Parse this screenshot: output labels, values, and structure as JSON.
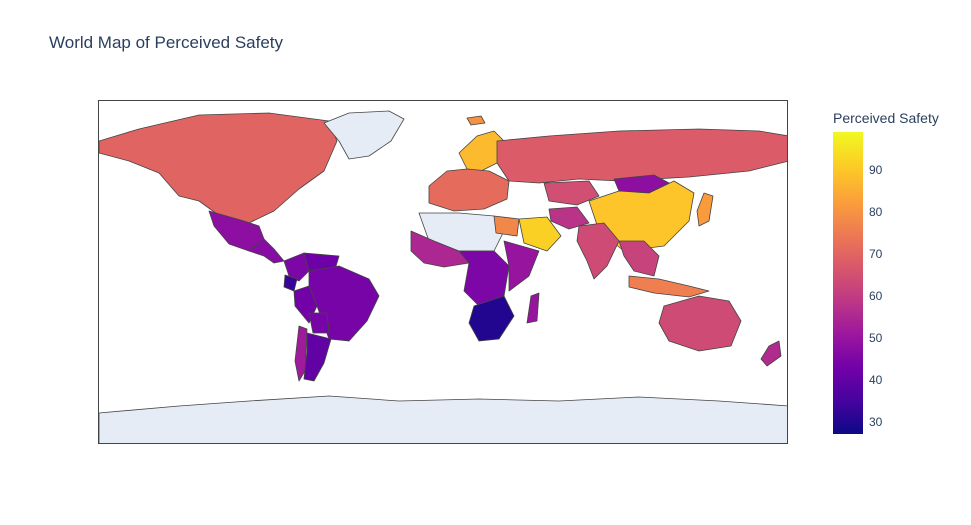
{
  "title": "World Map of Perceived Safety",
  "colorbar": {
    "title": "Perceived Safety",
    "ticks": [
      "90",
      "80",
      "70",
      "60",
      "50",
      "40",
      "30"
    ],
    "range": [
      27,
      99
    ]
  },
  "colors": {
    "no_data": "#e5ecf6",
    "border": "#444444",
    "scale": [
      "#0d0887",
      "#46039f",
      "#7201a8",
      "#9c179e",
      "#bd3786",
      "#d8576b",
      "#ed7953",
      "#fb9f3a",
      "#fdca26",
      "#f0f921"
    ]
  },
  "regions": [
    {
      "name": "North America",
      "value": 70
    },
    {
      "name": "Greenland",
      "value": null
    },
    {
      "name": "Mexico",
      "value": 48
    },
    {
      "name": "Central America",
      "value": 47
    },
    {
      "name": "Colombia",
      "value": 45
    },
    {
      "name": "Venezuela",
      "value": 42
    },
    {
      "name": "Ecuador",
      "value": 33
    },
    {
      "name": "Peru",
      "value": 43
    },
    {
      "name": "Brazil",
      "value": 44
    },
    {
      "name": "Bolivia",
      "value": 44
    },
    {
      "name": "Chile",
      "value": 52
    },
    {
      "name": "Argentina",
      "value": 40
    },
    {
      "name": "Iceland",
      "value": 80
    },
    {
      "name": "Scandinavia",
      "value": 88
    },
    {
      "name": "Western Europe",
      "value": 72
    },
    {
      "name": "Russia",
      "value": 68
    },
    {
      "name": "Kazakhstan",
      "value": 65
    },
    {
      "name": "Mongolia",
      "value": 48
    },
    {
      "name": "China",
      "value": 90
    },
    {
      "name": "Japan",
      "value": 82
    },
    {
      "name": "India",
      "value": 64
    },
    {
      "name": "Saudi Arabia",
      "value": 92
    },
    {
      "name": "Iran",
      "value": 58
    },
    {
      "name": "North Africa",
      "value": null
    },
    {
      "name": "Egypt",
      "value": 78
    },
    {
      "name": "West Africa",
      "value": 55
    },
    {
      "name": "Central Africa",
      "value": 45
    },
    {
      "name": "East Africa",
      "value": 50
    },
    {
      "name": "Southern Africa",
      "value": 30
    },
    {
      "name": "Madagascar",
      "value": 50
    },
    {
      "name": "Southeast Asia",
      "value": 62
    },
    {
      "name": "Indonesia",
      "value": 76
    },
    {
      "name": "Australia",
      "value": 64
    },
    {
      "name": "New Zealand",
      "value": 56
    },
    {
      "name": "Antarctica",
      "value": null
    }
  ]
}
